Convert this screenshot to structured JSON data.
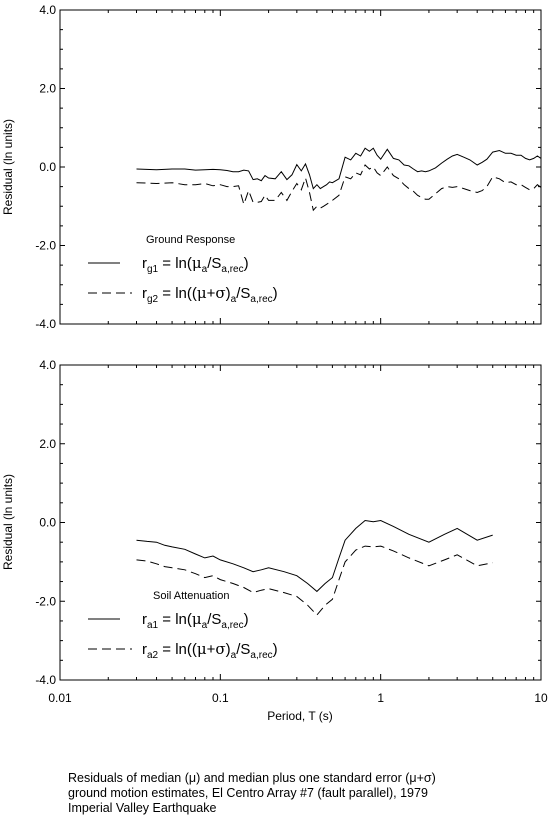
{
  "caption": {
    "line1": "Residuals of median (μ) and median plus one standard error (μ+σ)",
    "line2": "ground motion estimates, El Centro Array #7 (fault parallel), 1979",
    "line3": "Imperial Valley Earthquake"
  },
  "chart_data": [
    {
      "type": "line",
      "title": "",
      "xlabel": "",
      "ylabel": "Residual (ln units)",
      "xscale": "log",
      "xlim": [
        0.01,
        10
      ],
      "ylim": [
        -4.0,
        4.0
      ],
      "yticks": [
        "-4.0",
        "-2.0",
        "0.0",
        "2.0",
        "4.0"
      ],
      "xticks": [],
      "grid": false,
      "legend": {
        "title": "Ground Response",
        "placement": "lower-left",
        "entries": [
          {
            "style": "solid",
            "label": "r_g1 = ln(μ_a/S_a,rec)"
          },
          {
            "style": "dashed",
            "label": "r_g2 = ln((μ+σ)_a/S_a,rec)"
          }
        ]
      },
      "series": [
        {
          "style": "solid",
          "x": [
            0.03,
            0.04,
            0.05,
            0.06,
            0.07,
            0.08,
            0.09,
            0.1,
            0.11,
            0.12,
            0.13,
            0.14,
            0.15,
            0.16,
            0.17,
            0.18,
            0.19,
            0.2,
            0.22,
            0.24,
            0.26,
            0.28,
            0.3,
            0.32,
            0.34,
            0.36,
            0.38,
            0.4,
            0.42,
            0.44,
            0.46,
            0.48,
            0.5,
            0.55,
            0.6,
            0.65,
            0.7,
            0.75,
            0.8,
            0.85,
            0.9,
            0.95,
            1.0,
            1.1,
            1.2,
            1.3,
            1.4,
            1.5,
            1.6,
            1.7,
            1.8,
            1.9,
            2.0,
            2.2,
            2.4,
            2.6,
            2.8,
            3.0,
            3.3,
            3.6,
            4.0,
            4.3,
            4.6,
            5.0,
            5.5,
            6.0,
            6.5,
            7.0,
            7.5,
            8.0,
            8.5,
            9.0,
            9.5,
            10.0
          ],
          "y": [
            -0.05,
            -0.07,
            -0.05,
            -0.05,
            -0.08,
            -0.07,
            -0.06,
            -0.07,
            -0.09,
            -0.12,
            -0.12,
            -0.08,
            -0.1,
            -0.32,
            -0.3,
            -0.35,
            -0.22,
            -0.28,
            -0.3,
            -0.12,
            -0.32,
            -0.2,
            0.06,
            -0.1,
            0.08,
            -0.2,
            -0.55,
            -0.45,
            -0.55,
            -0.5,
            -0.45,
            -0.38,
            -0.4,
            -0.3,
            0.25,
            0.18,
            0.35,
            0.28,
            0.48,
            0.4,
            0.48,
            0.3,
            0.2,
            0.45,
            0.22,
            0.18,
            0.05,
            0.03,
            -0.05,
            -0.12,
            -0.1,
            -0.12,
            -0.1,
            -0.02,
            0.1,
            0.2,
            0.28,
            0.32,
            0.25,
            0.18,
            0.05,
            0.12,
            0.2,
            0.38,
            0.42,
            0.35,
            0.35,
            0.3,
            0.3,
            0.22,
            0.18,
            0.22,
            0.28,
            0.22
          ]
        },
        {
          "style": "dashed",
          "x": [
            0.03,
            0.04,
            0.05,
            0.06,
            0.07,
            0.08,
            0.09,
            0.1,
            0.11,
            0.12,
            0.13,
            0.14,
            0.15,
            0.16,
            0.17,
            0.18,
            0.19,
            0.2,
            0.22,
            0.24,
            0.26,
            0.28,
            0.3,
            0.32,
            0.34,
            0.36,
            0.38,
            0.4,
            0.42,
            0.44,
            0.46,
            0.48,
            0.5,
            0.55,
            0.6,
            0.65,
            0.7,
            0.75,
            0.8,
            0.85,
            0.9,
            0.95,
            1.0,
            1.1,
            1.2,
            1.3,
            1.4,
            1.5,
            1.6,
            1.7,
            1.8,
            1.9,
            2.0,
            2.2,
            2.4,
            2.6,
            2.8,
            3.0,
            3.3,
            3.6,
            4.0,
            4.3,
            4.6,
            5.0,
            5.5,
            6.0,
            6.5,
            7.0,
            7.5,
            8.0,
            8.5,
            9.0,
            9.5,
            10.0
          ],
          "y": [
            -0.4,
            -0.42,
            -0.4,
            -0.45,
            -0.45,
            -0.42,
            -0.48,
            -0.45,
            -0.5,
            -0.5,
            -0.48,
            -0.95,
            -0.6,
            -0.9,
            -0.9,
            -0.88,
            -0.72,
            -0.85,
            -0.85,
            -0.65,
            -0.85,
            -0.62,
            -0.42,
            -0.58,
            -0.28,
            -0.65,
            -1.1,
            -1.0,
            -1.05,
            -1.0,
            -0.95,
            -0.9,
            -0.85,
            -0.72,
            -0.25,
            -0.3,
            -0.15,
            -0.2,
            0.05,
            -0.05,
            0.0,
            -0.15,
            -0.22,
            0.0,
            -0.22,
            -0.3,
            -0.45,
            -0.55,
            -0.62,
            -0.72,
            -0.78,
            -0.82,
            -0.82,
            -0.68,
            -0.55,
            -0.5,
            -0.52,
            -0.5,
            -0.55,
            -0.6,
            -0.65,
            -0.6,
            -0.5,
            -0.25,
            -0.3,
            -0.4,
            -0.38,
            -0.45,
            -0.45,
            -0.52,
            -0.58,
            -0.55,
            -0.45,
            -0.52
          ]
        }
      ]
    },
    {
      "type": "line",
      "title": "",
      "xlabel": "Period, T (s)",
      "ylabel": "Residual (ln units)",
      "xscale": "log",
      "xlim": [
        0.01,
        10
      ],
      "ylim": [
        -4.0,
        4.0
      ],
      "yticks": [
        "-4.0",
        "-2.0",
        "0.0",
        "2.0",
        "4.0"
      ],
      "xticks": [
        "0.01",
        "0.1",
        "1",
        "10"
      ],
      "grid": false,
      "legend": {
        "title": "Soil Attenuation",
        "placement": "lower-left",
        "entries": [
          {
            "style": "solid",
            "label": "r_a1 = ln(μ_a/S_a,rec)"
          },
          {
            "style": "dashed",
            "label": "r_a2 = ln((μ+σ)_a/S_a,rec)"
          }
        ]
      },
      "series": [
        {
          "style": "solid",
          "x": [
            0.03,
            0.035,
            0.04,
            0.045,
            0.05,
            0.06,
            0.07,
            0.08,
            0.09,
            0.1,
            0.12,
            0.14,
            0.16,
            0.18,
            0.2,
            0.25,
            0.3,
            0.35,
            0.4,
            0.45,
            0.5,
            0.55,
            0.6,
            0.7,
            0.8,
            0.9,
            1.0,
            1.2,
            1.5,
            2.0,
            2.5,
            3.0,
            4.0,
            5.0
          ],
          "y": [
            -0.45,
            -0.48,
            -0.5,
            -0.58,
            -0.62,
            -0.68,
            -0.8,
            -0.9,
            -0.85,
            -0.95,
            -1.05,
            -1.15,
            -1.25,
            -1.2,
            -1.15,
            -1.25,
            -1.35,
            -1.55,
            -1.75,
            -1.55,
            -1.4,
            -0.9,
            -0.45,
            -0.15,
            0.05,
            0.02,
            0.05,
            -0.1,
            -0.3,
            -0.5,
            -0.3,
            -0.15,
            -0.45,
            -0.32
          ]
        },
        {
          "style": "dashed",
          "x": [
            0.03,
            0.035,
            0.04,
            0.045,
            0.05,
            0.06,
            0.07,
            0.08,
            0.09,
            0.1,
            0.12,
            0.14,
            0.16,
            0.18,
            0.2,
            0.25,
            0.3,
            0.35,
            0.4,
            0.45,
            0.5,
            0.55,
            0.6,
            0.7,
            0.8,
            0.9,
            1.0,
            1.2,
            1.5,
            2.0,
            2.5,
            3.0,
            4.0,
            5.0
          ],
          "y": [
            -0.95,
            -0.98,
            -1.05,
            -1.12,
            -1.15,
            -1.2,
            -1.3,
            -1.4,
            -1.35,
            -1.45,
            -1.55,
            -1.65,
            -1.78,
            -1.72,
            -1.68,
            -1.78,
            -1.88,
            -2.1,
            -2.35,
            -2.1,
            -1.95,
            -1.45,
            -1.0,
            -0.7,
            -0.6,
            -0.62,
            -0.6,
            -0.72,
            -0.9,
            -1.1,
            -0.95,
            -0.82,
            -1.1,
            -1.02
          ]
        }
      ]
    }
  ]
}
